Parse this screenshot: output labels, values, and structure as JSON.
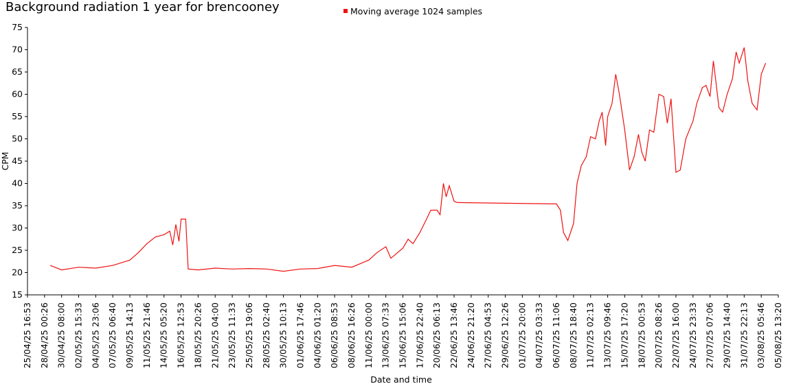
{
  "chart_data": {
    "type": "line",
    "title": "Background radiation 1 year for brencooney",
    "xlabel": "Date and time",
    "ylabel": "CPM",
    "series": [
      {
        "name": "Moving average 1024 samples",
        "color": "#ee1111",
        "x": [
          "28/04/25 19:00",
          "30/04/25 08:00",
          "02/05/25 15:33",
          "04/05/25 23:06",
          "07/05/25 06:40",
          "09/05/25 14:13",
          "10/05/25 18:00",
          "11/05/25 21:46",
          "13/05/25 01:30",
          "14/05/25 05:20",
          "15/05/25 00:00",
          "15/05/25 10:00",
          "15/05/25 20:00",
          "16/05/25 06:00",
          "16/05/25 12:53",
          "17/05/25 04:00",
          "17/05/25 12:00",
          "18/05/25 20:26",
          "21/05/25 04:00",
          "23/05/25 11:33",
          "25/05/25 19:06",
          "28/05/25 02:40",
          "30/05/25 10:13",
          "01/06/25 17:46",
          "04/06/25 01:20",
          "06/06/25 08:53",
          "08/06/25 16:26",
          "11/06/25 00:00",
          "12/06/25 03:00",
          "13/06/25 07:33",
          "14/06/25 00:00",
          "15/06/25 15:06",
          "16/06/25 08:00",
          "17/06/25 00:00",
          "17/06/25 22:40",
          "18/06/25 20:00",
          "19/06/25 10:00",
          "20/06/25 06:13",
          "20/06/25 16:00",
          "21/06/25 03:00",
          "21/06/25 12:00",
          "21/06/25 22:00",
          "22/06/25 13:46",
          "23/06/25 00:00",
          "06/07/25 11:06",
          "07/07/25 00:00",
          "07/07/25 10:00",
          "08/07/25 00:00",
          "08/07/25 18:40",
          "09/07/25 06:00",
          "09/07/25 20:00",
          "10/07/25 12:00",
          "11/07/25 02:13",
          "11/07/25 18:00",
          "12/07/25 06:00",
          "12/07/25 16:00",
          "13/07/25 03:00",
          "13/07/25 09:46",
          "14/07/25 00:00",
          "14/07/25 12:00",
          "15/07/25 00:00",
          "15/07/25 17:20",
          "16/07/25 09:00",
          "17/07/25 00:00",
          "17/07/25 14:00",
          "18/07/25 00:53",
          "18/07/25 12:00",
          "19/07/25 02:00",
          "19/07/25 16:00",
          "20/07/25 08:26",
          "21/07/25 00:00",
          "21/07/25 12:00",
          "22/07/25 00:00",
          "22/07/25 16:00",
          "23/07/25 06:00",
          "24/07/25 00:00",
          "24/07/25 23:33",
          "25/07/25 12:00",
          "26/07/25 06:00",
          "26/07/25 18:00",
          "27/07/25 07:06",
          "27/07/25 18:00",
          "28/07/25 12:00",
          "29/07/25 00:00",
          "29/07/25 14:40",
          "30/07/25 08:00",
          "30/07/25 20:00",
          "31/07/25 06:00",
          "31/07/25 22:13",
          "01/08/25 10:00",
          "02/08/25 00:00",
          "02/08/25 16:00",
          "03/08/25 05:46",
          "03/08/25 20:00"
        ],
        "values": [
          21.6,
          20.6,
          21.2,
          21.0,
          21.6,
          22.8,
          24.5,
          26.5,
          28,
          28.5,
          29.3,
          26.2,
          30.8,
          27,
          32,
          32,
          20.8,
          20.6,
          21.0,
          20.8,
          20.9,
          20.8,
          20.3,
          20.8,
          20.9,
          21.6,
          21.2,
          22.8,
          24.5,
          25.8,
          23.2,
          25.5,
          27.5,
          26.5,
          29,
          32,
          34,
          34,
          33,
          40,
          37,
          39.5,
          36,
          35.7,
          35.4,
          34,
          29,
          27.2,
          31,
          40,
          44,
          46,
          50.5,
          50,
          54,
          56,
          48.5,
          55,
          58,
          64.5,
          60,
          52,
          43,
          46,
          51,
          47,
          45,
          52,
          51.5,
          60,
          59.5,
          53.5,
          59,
          42.5,
          43,
          50,
          54,
          58,
          61.5,
          62,
          59.5,
          67.5,
          57,
          56,
          60,
          63.5,
          69.5,
          67,
          70.5,
          63,
          58,
          56.5,
          64.5,
          67
        ]
      }
    ],
    "xlim": [
      "25/04/25 16:53",
      "05/08/25 13:20"
    ],
    "xticks": [
      "25/04/25 16:53",
      "28/04/25 00:26",
      "30/04/25 08:00",
      "02/05/25 15:33",
      "04/05/25 23:06",
      "07/05/25 06:40",
      "09/05/25 14:13",
      "11/05/25 21:46",
      "14/05/25 05:20",
      "16/05/25 12:53",
      "18/05/25 20:26",
      "21/05/25 04:00",
      "23/05/25 11:33",
      "25/05/25 19:06",
      "28/05/25 02:40",
      "30/05/25 10:13",
      "01/06/25 17:46",
      "04/06/25 01:20",
      "06/06/25 08:53",
      "08/06/25 16:26",
      "11/06/25 00:00",
      "13/06/25 07:33",
      "15/06/25 15:06",
      "17/06/25 22:40",
      "20/06/25 06:13",
      "22/06/25 13:46",
      "24/06/25 21:20",
      "27/06/25 04:53",
      "29/06/25 12:26",
      "01/07/25 20:00",
      "04/07/25 03:33",
      "06/07/25 11:06",
      "08/07/25 18:40",
      "11/07/25 02:13",
      "13/07/25 09:46",
      "15/07/25 17:20",
      "18/07/25 00:53",
      "20/07/25 08:26",
      "22/07/25 16:00",
      "24/07/25 23:33",
      "27/07/25 07:06",
      "29/07/25 14:40",
      "31/07/25 22:13",
      "03/08/25 05:46",
      "05/08/25 13:20"
    ],
    "ylim": [
      15,
      75
    ],
    "yticks": [
      15,
      20,
      25,
      30,
      35,
      40,
      45,
      50,
      55,
      60,
      65,
      70,
      75
    ],
    "grid": false
  }
}
